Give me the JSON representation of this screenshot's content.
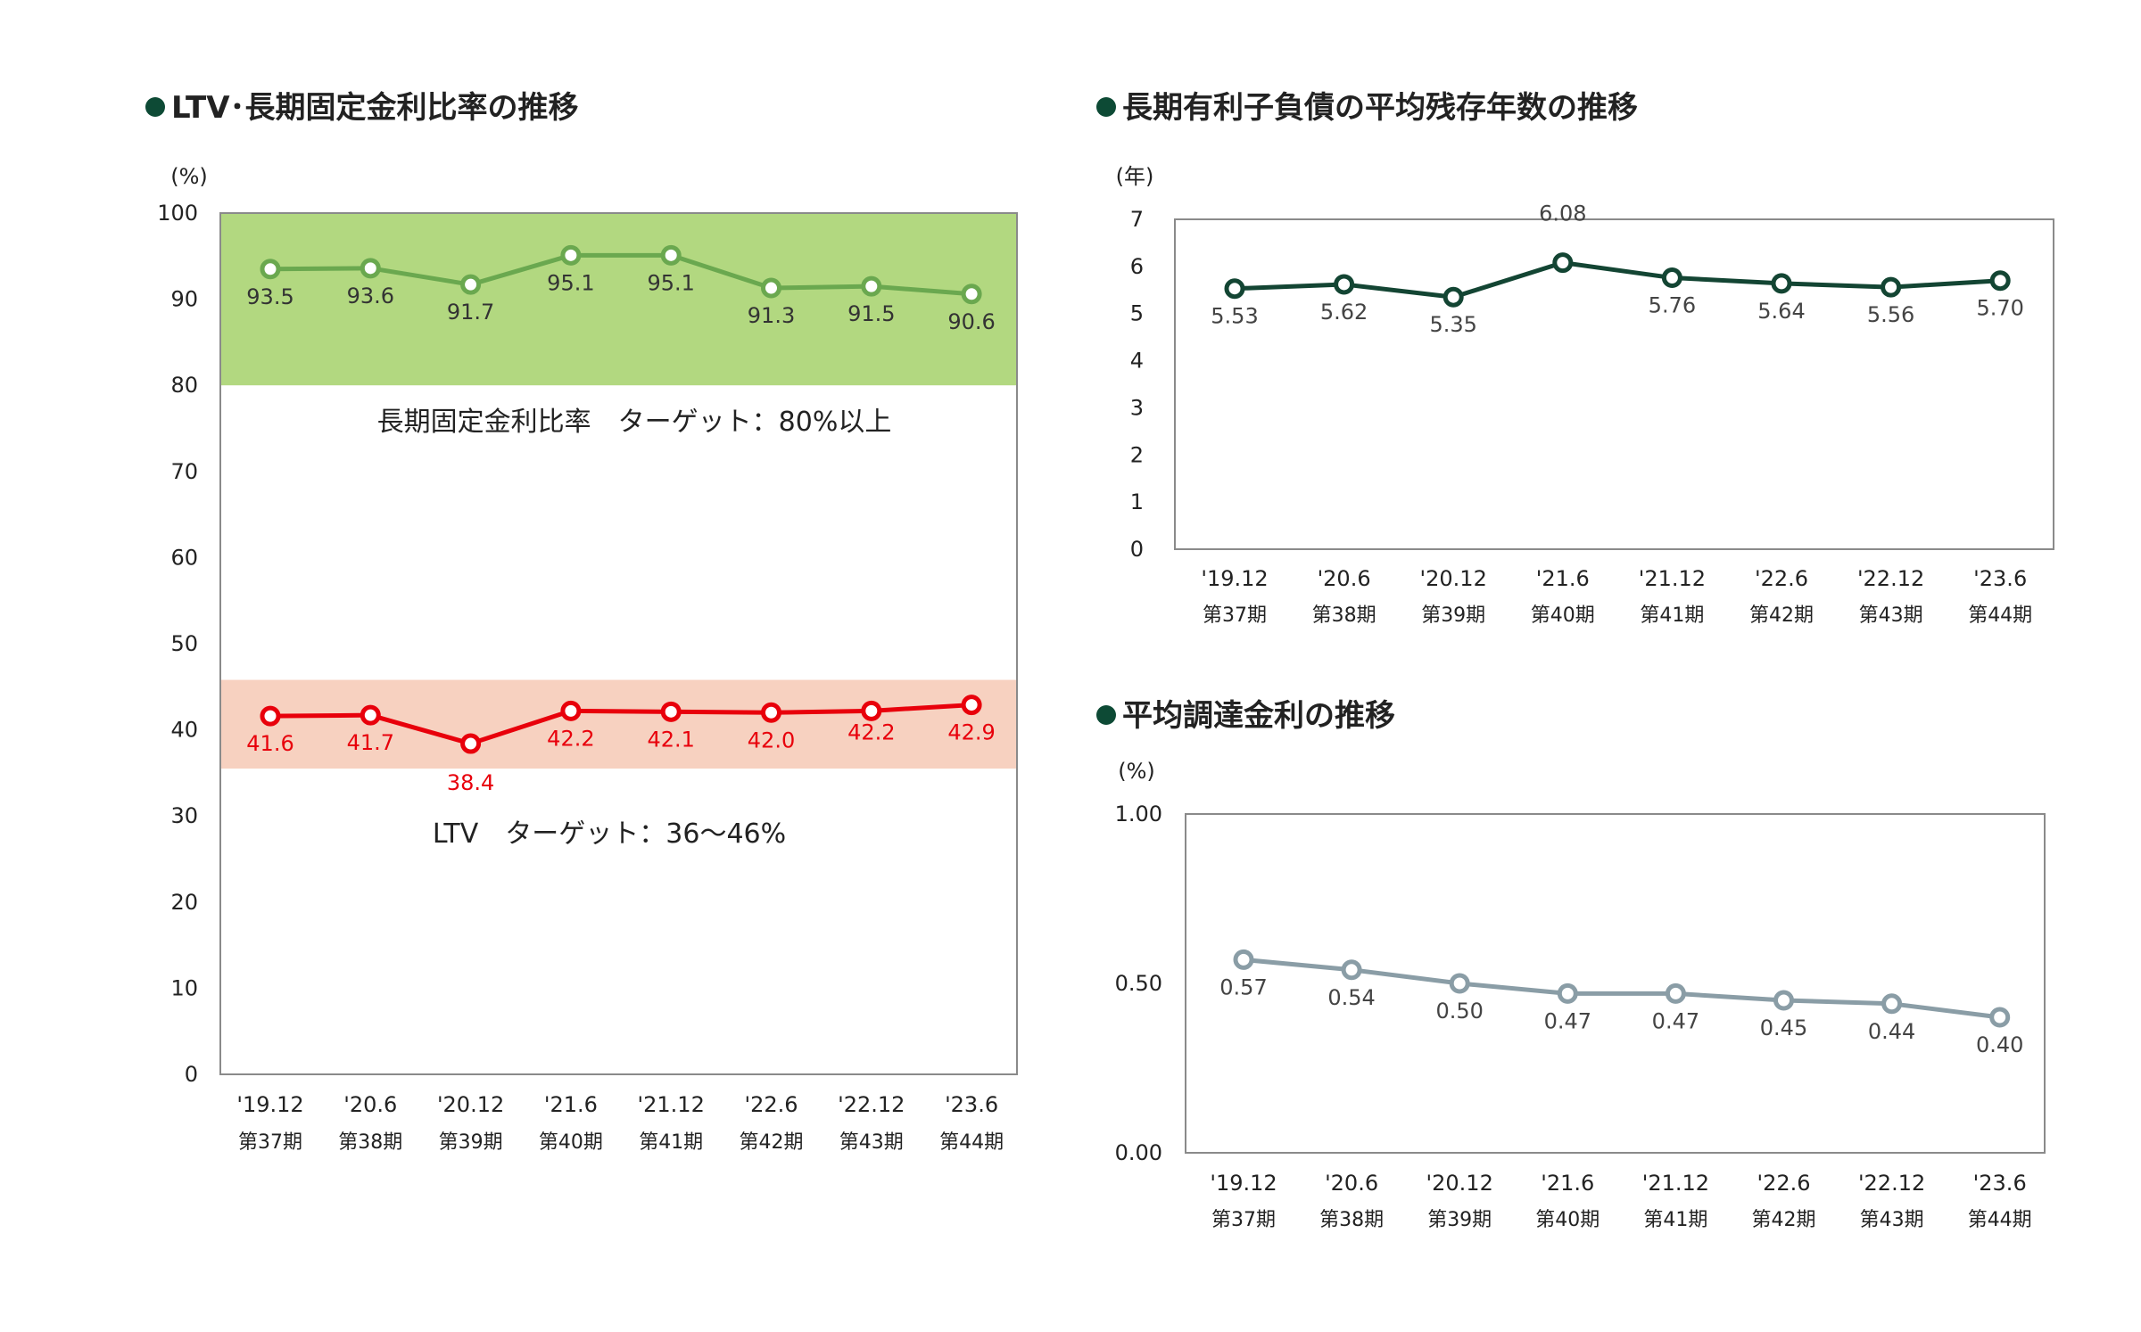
{
  "chart_data": [
    {
      "type": "line",
      "title": "LTV･長期固定金利比率の推移",
      "unit_label": "(%)",
      "ylim": [
        0,
        100
      ],
      "yticks": [
        0,
        10,
        20,
        30,
        40,
        50,
        60,
        70,
        80,
        90,
        100
      ],
      "categories": [
        "'19.12",
        "'20.6",
        "'20.12",
        "'21.6",
        "'21.12",
        "'22.6",
        "'22.12",
        "'23.6"
      ],
      "categories_sub": [
        "第37期",
        "第38期",
        "第39期",
        "第40期",
        "第41期",
        "第42期",
        "第43期",
        "第44期"
      ],
      "series": [
        {
          "values": [
            93.5,
            93.6,
            91.7,
            95.1,
            95.1,
            91.3,
            91.5,
            90.6
          ],
          "labels": [
            "93.5",
            "93.6",
            "91.7",
            "95.1",
            "95.1",
            "91.3",
            "91.5",
            "90.6"
          ],
          "color": "#6aa84f"
        },
        {
          "values": [
            41.6,
            41.7,
            38.4,
            42.2,
            42.1,
            42.0,
            42.2,
            42.9
          ],
          "labels": [
            "41.6",
            "41.7",
            "38.4",
            "42.2",
            "42.1",
            "42.0",
            "42.2",
            "42.9"
          ],
          "color": "#e8000b"
        }
      ],
      "bands": [
        {
          "range": [
            80,
            100
          ],
          "color": "#a4d16a"
        },
        {
          "range": [
            35.5,
            45.8
          ],
          "color": "#f6c9b5"
        }
      ],
      "annotations": [
        "長期固定金利比率　ターゲット：80%以上",
        "LTV　ターゲット：36～46%"
      ],
      "grid": false
    },
    {
      "type": "line",
      "title": "長期有利子負債の平均残存年数の推移",
      "unit_label": "(年)",
      "ylim": [
        0,
        7
      ],
      "yticks": [
        0,
        1,
        2,
        3,
        4,
        5,
        6,
        7
      ],
      "categories": [
        "'19.12",
        "'20.6",
        "'20.12",
        "'21.6",
        "'21.12",
        "'22.6",
        "'22.12",
        "'23.6"
      ],
      "categories_sub": [
        "第37期",
        "第38期",
        "第39期",
        "第40期",
        "第41期",
        "第42期",
        "第43期",
        "第44期"
      ],
      "series": [
        {
          "values": [
            5.53,
            5.62,
            5.35,
            6.08,
            5.76,
            5.64,
            5.56,
            5.7
          ],
          "labels": [
            "5.53",
            "5.62",
            "5.35",
            "6.08",
            "5.76",
            "5.64",
            "5.56",
            "5.70"
          ],
          "color": "#134533"
        }
      ],
      "grid": false
    },
    {
      "type": "line",
      "title": "平均調達金利の推移",
      "unit_label": "(%)",
      "ylim": [
        0,
        1
      ],
      "yticks": [
        "0.00",
        "0.50",
        "1.00"
      ],
      "categories": [
        "'19.12",
        "'20.6",
        "'20.12",
        "'21.6",
        "'21.12",
        "'22.6",
        "'22.12",
        "'23.6"
      ],
      "categories_sub": [
        "第37期",
        "第38期",
        "第39期",
        "第40期",
        "第41期",
        "第42期",
        "第43期",
        "第44期"
      ],
      "series": [
        {
          "values": [
            0.57,
            0.54,
            0.5,
            0.47,
            0.47,
            0.45,
            0.44,
            0.4
          ],
          "labels": [
            "0.57",
            "0.54",
            "0.50",
            "0.47",
            "0.47",
            "0.45",
            "0.44",
            "0.40"
          ],
          "color": "#8a9da6"
        }
      ],
      "grid": false
    }
  ]
}
